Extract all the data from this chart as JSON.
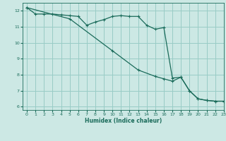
{
  "title": "",
  "xlabel": "Humidex (Indice chaleur)",
  "background_color": "#cce8e4",
  "grid_color": "#99ccc6",
  "line_color": "#1a6b5a",
  "xlim": [
    -0.5,
    23
  ],
  "ylim": [
    5.8,
    12.5
  ],
  "xticks": [
    0,
    1,
    2,
    3,
    4,
    5,
    6,
    7,
    8,
    9,
    10,
    11,
    12,
    13,
    14,
    15,
    16,
    17,
    18,
    19,
    20,
    21,
    22,
    23
  ],
  "yticks": [
    6,
    7,
    8,
    9,
    10,
    11,
    12
  ],
  "line1_x": [
    0,
    1,
    2,
    3,
    4,
    5,
    6,
    7,
    8,
    9,
    10,
    11,
    12,
    13,
    14,
    15,
    16,
    17,
    18,
    19,
    20,
    21,
    22,
    23
  ],
  "line1_y": [
    12.2,
    11.8,
    11.8,
    11.8,
    11.75,
    11.7,
    11.65,
    11.1,
    11.3,
    11.45,
    11.65,
    11.7,
    11.65,
    11.65,
    11.1,
    10.85,
    10.95,
    7.8,
    7.85,
    7.0,
    6.5,
    6.4,
    6.35,
    6.35
  ],
  "line2_x": [
    0,
    5,
    10,
    13,
    15,
    16,
    17,
    18,
    19,
    20,
    21,
    22,
    23
  ],
  "line2_y": [
    12.2,
    11.5,
    9.5,
    8.3,
    7.9,
    7.75,
    7.6,
    7.85,
    7.0,
    6.5,
    6.4,
    6.35,
    6.35
  ]
}
